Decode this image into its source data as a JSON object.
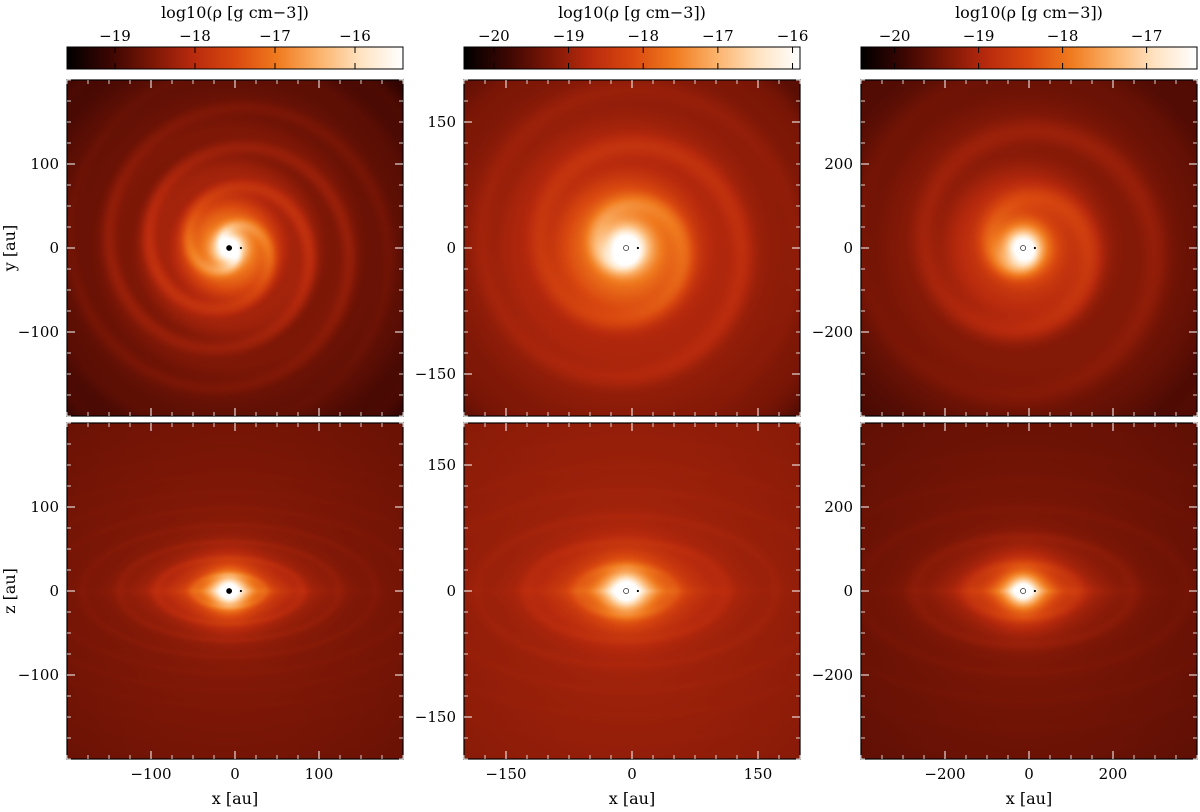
{
  "chart_data": [
    {
      "type": "heatmap",
      "column": 1,
      "colorbar": {
        "label": "log10(ρ [g cm−3])",
        "ticks": [
          -19,
          -18,
          -17,
          -16
        ],
        "range": [
          -19.6,
          -15.4
        ]
      },
      "panels": [
        {
          "view": "face-on",
          "xlabel": "",
          "ylabel": "y [au]",
          "xlim": [
            -200,
            200
          ],
          "ylim": [
            -200,
            200
          ],
          "yticks": [
            -100,
            0,
            100
          ],
          "xticks": [],
          "arms": 2,
          "wave": 48,
          "spiral": 34,
          "stretch": 1.0,
          "core": 20,
          "bg": 0.2
        },
        {
          "view": "edge-on",
          "xlabel": "x [au]",
          "ylabel": "z [au]",
          "xlim": [
            -200,
            200
          ],
          "ylim": [
            -200,
            200
          ],
          "yticks": [
            -100,
            0,
            100
          ],
          "xticks": [
            -100,
            0,
            100
          ],
          "arms": 0,
          "wave": 44,
          "spiral": 0,
          "stretch": 0.45,
          "core": 18,
          "bg": 0.24
        }
      ]
    },
    {
      "type": "heatmap",
      "column": 2,
      "colorbar": {
        "label": "log10(ρ [g cm−3])",
        "ticks": [
          -20,
          -19,
          -18,
          -17,
          -16
        ],
        "range": [
          -20.4,
          -15.9
        ]
      },
      "panels": [
        {
          "view": "face-on",
          "xlabel": "",
          "ylabel": "",
          "xlim": [
            -200,
            200
          ],
          "ylim": [
            -200,
            200
          ],
          "yticks": [
            -150,
            0,
            150
          ],
          "xticks": [],
          "arms": 1,
          "wave": 70,
          "spiral": 40,
          "stretch": 1.0,
          "core": 22,
          "bg": 0.28
        },
        {
          "view": "edge-on",
          "xlabel": "x [au]",
          "ylabel": "",
          "xlim": [
            -200,
            200
          ],
          "ylim": [
            -200,
            200
          ],
          "yticks": [
            -150,
            0,
            150
          ],
          "xticks": [
            -150,
            0,
            150
          ],
          "arms": 0,
          "wave": 60,
          "spiral": 0,
          "stretch": 0.5,
          "core": 20,
          "bg": 0.3
        }
      ]
    },
    {
      "type": "heatmap",
      "column": 3,
      "colorbar": {
        "label": "log10(ρ [g cm−3])",
        "ticks": [
          -20,
          -19,
          -18,
          -17
        ],
        "range": [
          -20.4,
          -16.4
        ]
      },
      "panels": [
        {
          "view": "face-on",
          "xlabel": "",
          "ylabel": "",
          "xlim": [
            -400,
            400
          ],
          "ylim": [
            -400,
            400
          ],
          "yticks": [
            -200,
            0,
            200
          ],
          "xticks": [],
          "arms": 1,
          "wave": 80,
          "spiral": 30,
          "stretch": 1.0,
          "core": 18,
          "bg": 0.22
        },
        {
          "view": "edge-on",
          "xlabel": "x [au]",
          "ylabel": "",
          "xlim": [
            -400,
            400
          ],
          "ylim": [
            -400,
            400
          ],
          "yticks": [
            -200,
            0,
            200
          ],
          "xticks": [
            -200,
            0,
            200
          ],
          "arms": 0,
          "wave": 66,
          "spiral": 0,
          "stretch": 0.5,
          "core": 18,
          "bg": 0.22
        }
      ]
    }
  ],
  "colormap": [
    "#000000",
    "#3a0602",
    "#7a1606",
    "#b82a0d",
    "#d9480f",
    "#f07a1e",
    "#fbb26a",
    "#ffe3c2",
    "#ffffff"
  ]
}
